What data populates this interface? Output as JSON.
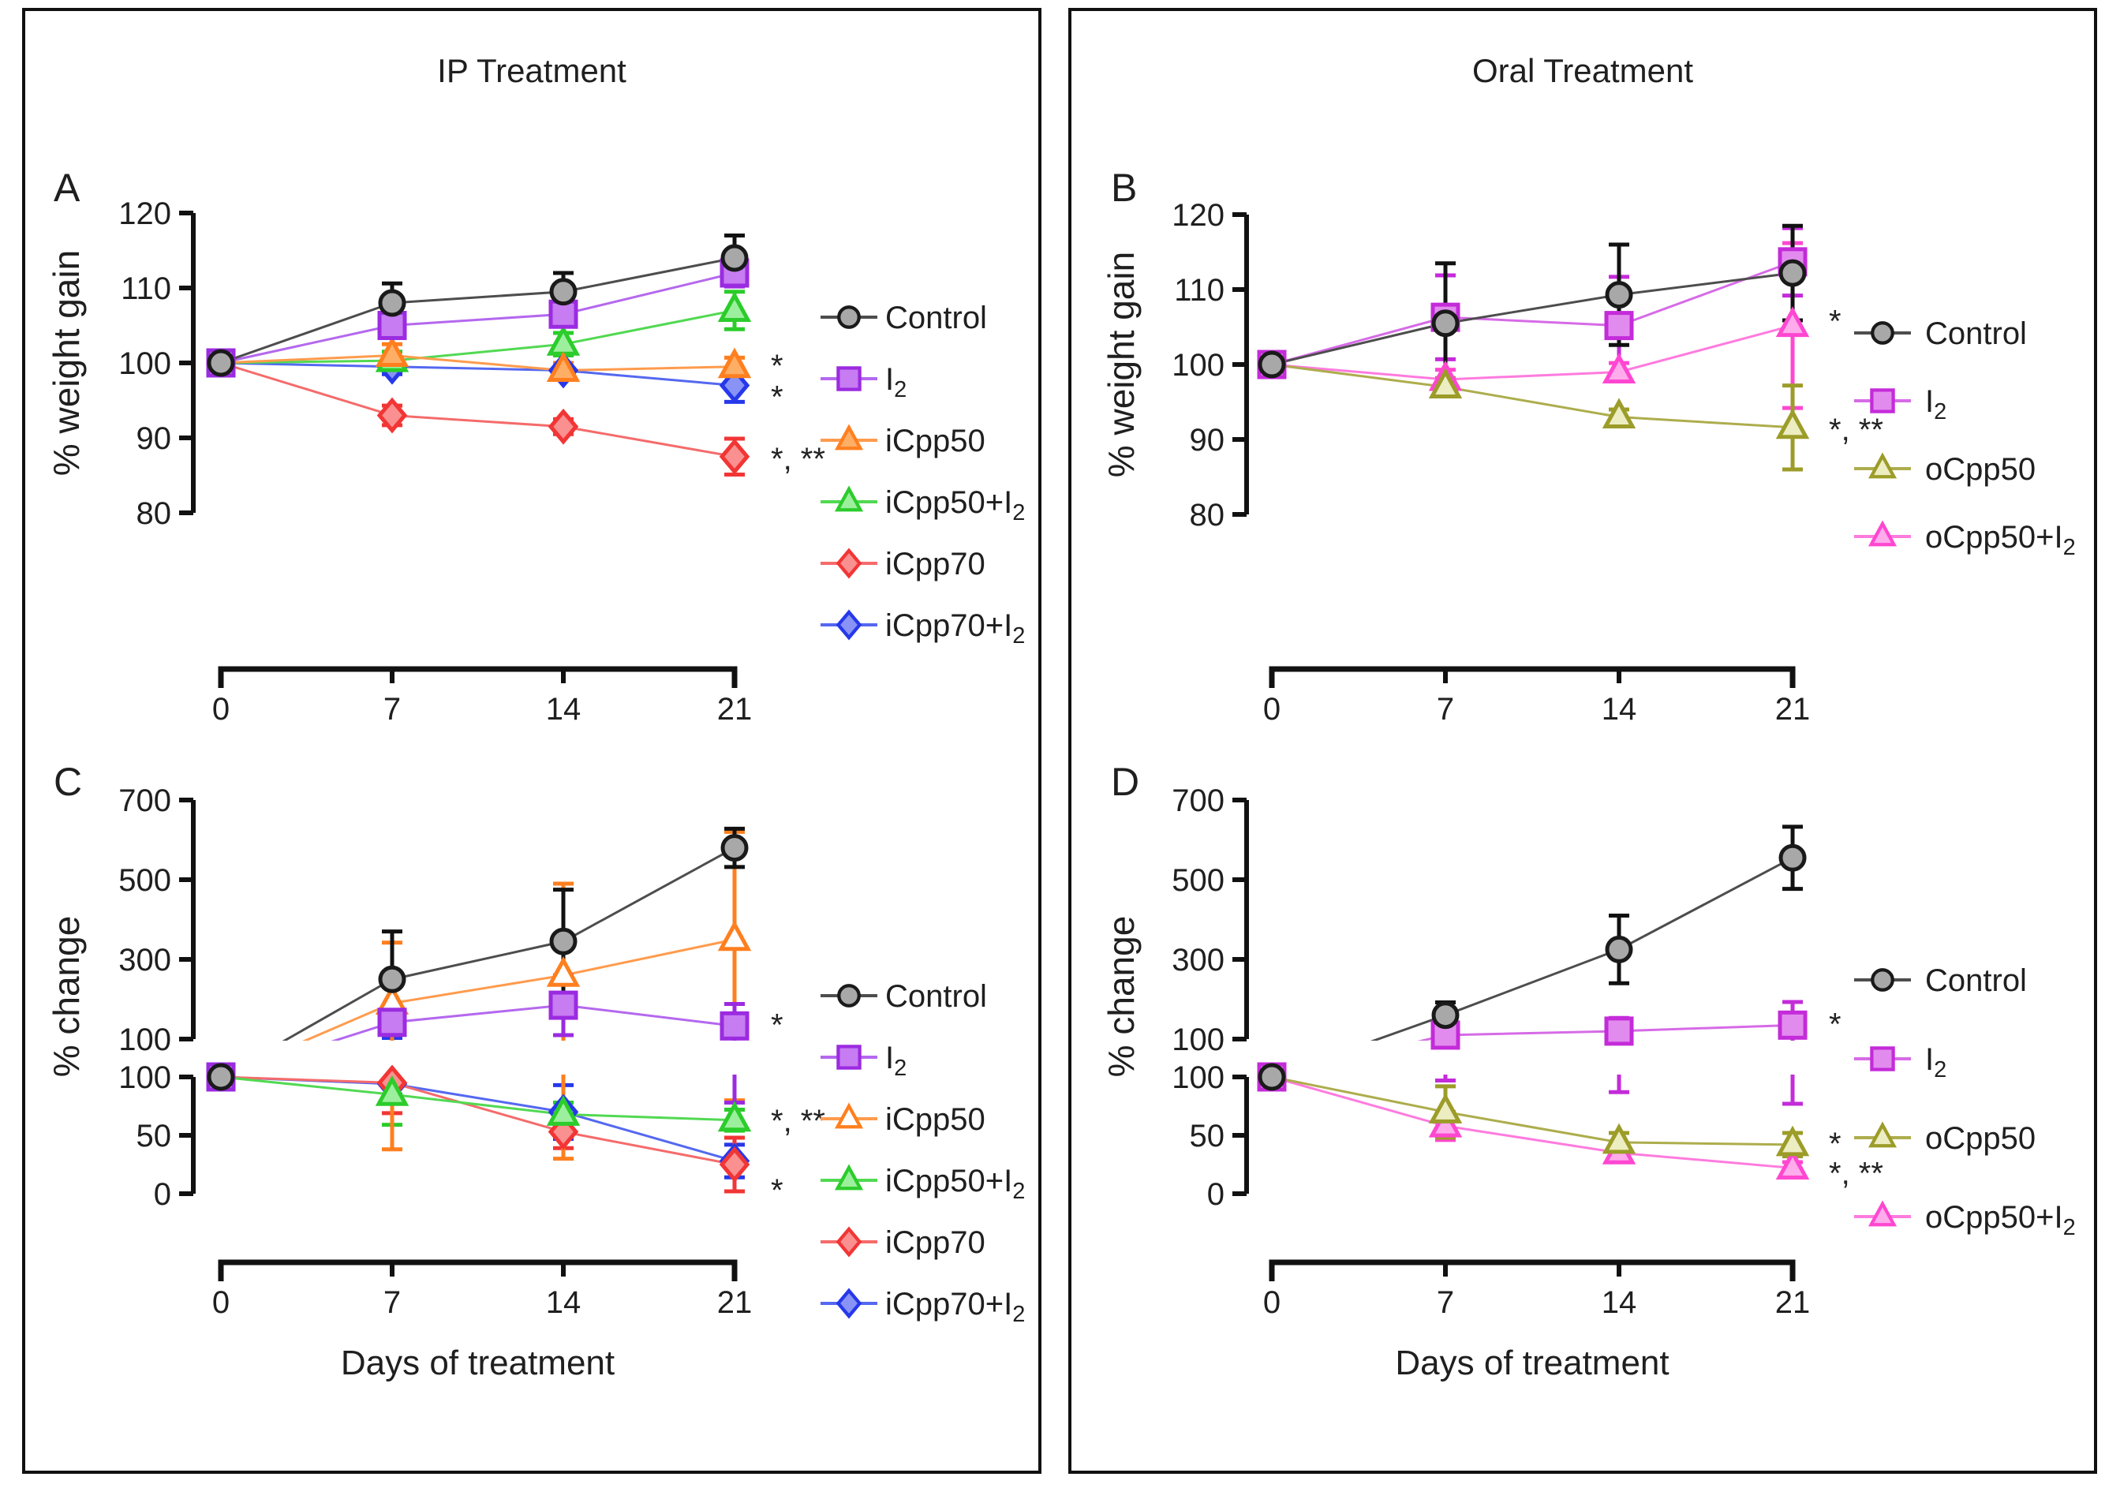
{
  "panels": {
    "ip": {
      "title": "IP Treatment"
    },
    "oral": {
      "title": "Oral Treatment"
    }
  },
  "colors": {
    "control": {
      "stroke": "#1A1A1A",
      "fill": "#A8A8A8",
      "line": "#4D4D4D"
    },
    "i2_ip": {
      "stroke": "#9B2BE0",
      "fill": "#C77CF2",
      "line": "#B468EE"
    },
    "icpp50": {
      "stroke": "#FF7F1E",
      "fill": "#FFAE66",
      "line": "#FF9B4D"
    },
    "icpp50_i2": {
      "stroke": "#2BCC2B",
      "fill": "#9CEF9C",
      "line": "#52D952"
    },
    "icpp70": {
      "stroke": "#F23535",
      "fill": "#FA9090",
      "line": "#F56B6B"
    },
    "icpp70_i2": {
      "stroke": "#2638EA",
      "fill": "#8893F5",
      "line": "#5468F0"
    },
    "i2_oral": {
      "stroke": "#C42BD9",
      "fill": "#E28BEE",
      "line": "#D66BE6"
    },
    "ocpp50": {
      "stroke": "#9C9C29",
      "fill": "#EDEDC2",
      "line": "#ADAD4D"
    },
    "ocpp50_i2": {
      "stroke": "#FF47D1",
      "fill": "#FFABEC",
      "line": "#FF7BDE"
    },
    "axis": "#111111",
    "text": "#1f1f1f"
  },
  "chart_data": [
    {
      "id": "A",
      "type": "line",
      "panel_letter": "A",
      "ylabel": "% weight gain",
      "xlabel": "",
      "x": [
        0,
        7,
        14,
        21
      ],
      "x_ticks": [
        "0",
        "7",
        "14",
        "21"
      ],
      "y_axis": {
        "kind": "linear",
        "ticks": [
          120,
          110,
          100,
          90,
          80
        ],
        "min": 80,
        "max": 120
      },
      "series": [
        {
          "key": "control",
          "label": "Control",
          "sub": "",
          "marker": "circle",
          "color": "control",
          "values": [
            100,
            108,
            109.5,
            114
          ],
          "errors": [
            0,
            2.6,
            2.5,
            3
          ],
          "sig": ""
        },
        {
          "key": "i2",
          "label": "I",
          "sub": "2",
          "marker": "square",
          "color": "i2_ip",
          "values": [
            100,
            105,
            106.5,
            112
          ],
          "errors": [
            0,
            1.5,
            1.5,
            1.8
          ],
          "sig": ""
        },
        {
          "key": "icpp50",
          "label": "iCpp50",
          "sub": "",
          "marker": "triangle",
          "color": "icpp50",
          "values": [
            100,
            101,
            99,
            99.5
          ],
          "errors": [
            0,
            1.5,
            1,
            1.2
          ],
          "sig": "*"
        },
        {
          "key": "icpp50_i2",
          "label": "iCpp50+I",
          "sub": "2",
          "marker": "triangle",
          "color": "icpp50_i2",
          "values": [
            100,
            100.3,
            102.5,
            107
          ],
          "errors": [
            0,
            1.2,
            1.5,
            2.5
          ],
          "sig": ""
        },
        {
          "key": "icpp70",
          "label": "iCpp70",
          "sub": "",
          "marker": "diamond",
          "color": "icpp70",
          "values": [
            100,
            93,
            91.5,
            87.5
          ],
          "errors": [
            0,
            1.3,
            1,
            2.4
          ],
          "sig": "*, **"
        },
        {
          "key": "icpp70_i2",
          "label": "iCpp70+I",
          "sub": "2",
          "marker": "diamond",
          "color": "icpp70_i2",
          "values": [
            100,
            99.5,
            99,
            97
          ],
          "errors": [
            0,
            1,
            0.8,
            2.2
          ],
          "sig": "*"
        }
      ]
    },
    {
      "id": "B",
      "type": "line",
      "panel_letter": "B",
      "ylabel": "% weight gain",
      "xlabel": "",
      "x": [
        0,
        7,
        14,
        21
      ],
      "x_ticks": [
        "0",
        "7",
        "14",
        "21"
      ],
      "y_axis": {
        "kind": "linear",
        "ticks": [
          120,
          110,
          100,
          90,
          80
        ],
        "min": 80,
        "max": 120
      },
      "series": [
        {
          "key": "control",
          "label": "Control",
          "sub": "",
          "marker": "circle",
          "color": "control",
          "values": [
            100,
            105.5,
            109.3,
            112.2
          ],
          "errors": [
            0,
            8,
            6.7,
            6.3
          ],
          "sig": ""
        },
        {
          "key": "i2",
          "label": "I",
          "sub": "2",
          "marker": "square",
          "color": "i2_oral",
          "values": [
            100,
            106.3,
            105.2,
            113.7
          ],
          "errors": [
            0,
            5.6,
            6.5,
            4.5
          ],
          "sig": ""
        },
        {
          "key": "ocpp50",
          "label": "oCpp50",
          "sub": "",
          "marker": "triangle",
          "color": "ocpp50",
          "values": [
            100,
            97,
            93,
            91.6
          ],
          "errors": [
            0,
            1.2,
            1,
            5.6
          ],
          "sig": "*, **"
        },
        {
          "key": "ocpp50_i2",
          "label": "oCpp50+I",
          "sub": "2",
          "marker": "triangle",
          "color": "ocpp50_i2",
          "values": [
            100,
            98,
            99,
            105.2
          ],
          "errors": [
            0,
            1.3,
            1.2,
            11
          ],
          "sig": "*"
        }
      ]
    },
    {
      "id": "C",
      "type": "line",
      "panel_letter": "C",
      "ylabel": "% change",
      "xlabel": "Days of treatment",
      "x": [
        0,
        7,
        14,
        21
      ],
      "x_ticks": [
        "0",
        "7",
        "14",
        "21"
      ],
      "y_axis": {
        "kind": "broken",
        "top_ticks": [
          700,
          500,
          300,
          100
        ],
        "bottom_ticks": [
          100,
          50,
          0
        ],
        "top_range": [
          100,
          700
        ],
        "bottom_range": [
          0,
          100
        ]
      },
      "series": [
        {
          "key": "control",
          "label": "Control",
          "sub": "",
          "marker": "circle",
          "color": "control",
          "values": [
            100,
            250,
            345,
            580
          ],
          "errors": [
            0,
            120,
            130,
            48
          ],
          "sig": ""
        },
        {
          "key": "i2",
          "label": "I",
          "sub": "2",
          "marker": "square",
          "color": "i2_ip",
          "values": [
            100,
            142,
            185,
            133
          ],
          "errors": [
            0,
            32,
            75,
            55
          ],
          "sig": "*"
        },
        {
          "key": "icpp50",
          "label": "iCpp50",
          "sub": "",
          "marker": "triangle",
          "color": "icpp50",
          "values": [
            100,
            190,
            260,
            350
          ],
          "errors": [
            0,
            152,
            230,
            270
          ],
          "sig": "",
          "fill_override": "#FFFFFF"
        },
        {
          "key": "icpp50_i2",
          "label": "iCpp50+I",
          "sub": "2",
          "marker": "triangle",
          "color": "icpp50_i2",
          "values": [
            100,
            85,
            68,
            63
          ],
          "errors": [
            0,
            26,
            10,
            9
          ],
          "sig": "*, **"
        },
        {
          "key": "icpp70",
          "label": "iCpp70",
          "sub": "",
          "marker": "diamond",
          "color": "icpp70",
          "values": [
            100,
            95,
            53,
            25
          ],
          "errors": [
            0,
            26,
            14,
            23
          ],
          "sig": "*"
        },
        {
          "key": "icpp70_i2",
          "label": "iCpp70+I",
          "sub": "2",
          "marker": "diamond",
          "color": "icpp70_i2",
          "values": [
            100,
            94,
            70,
            28
          ],
          "errors": [
            0,
            9,
            23,
            14
          ],
          "sig": ""
        }
      ]
    },
    {
      "id": "D",
      "type": "line",
      "panel_letter": "D",
      "ylabel": "% change",
      "xlabel": "Days of treatment",
      "x": [
        0,
        7,
        14,
        21
      ],
      "x_ticks": [
        "0",
        "7",
        "14",
        "21"
      ],
      "y_axis": {
        "kind": "broken",
        "top_ticks": [
          700,
          500,
          300,
          100
        ],
        "bottom_ticks": [
          100,
          50,
          0
        ],
        "top_range": [
          100,
          700
        ],
        "bottom_range": [
          0,
          100
        ]
      },
      "series": [
        {
          "key": "control",
          "label": "Control",
          "sub": "",
          "marker": "circle",
          "color": "control",
          "values": [
            100,
            160,
            325,
            555
          ],
          "errors": [
            0,
            32,
            85,
            78
          ],
          "sig": ""
        },
        {
          "key": "i2",
          "label": "I",
          "sub": "2",
          "marker": "square",
          "color": "i2_oral",
          "values": [
            100,
            110,
            120,
            135
          ],
          "errors": [
            0,
            13,
            33,
            58
          ],
          "sig": "*"
        },
        {
          "key": "ocpp50",
          "label": "oCpp50",
          "sub": "",
          "marker": "triangle",
          "color": "ocpp50",
          "values": [
            100,
            70,
            44,
            42
          ],
          "errors": [
            0,
            22,
            8,
            10
          ],
          "sig": "*"
        },
        {
          "key": "ocpp50_i2",
          "label": "oCpp50+I",
          "sub": "2",
          "marker": "triangle",
          "color": "ocpp50_i2",
          "values": [
            100,
            58,
            35,
            22
          ],
          "errors": [
            0,
            12,
            8,
            5
          ],
          "sig": "*, **"
        }
      ]
    }
  ]
}
